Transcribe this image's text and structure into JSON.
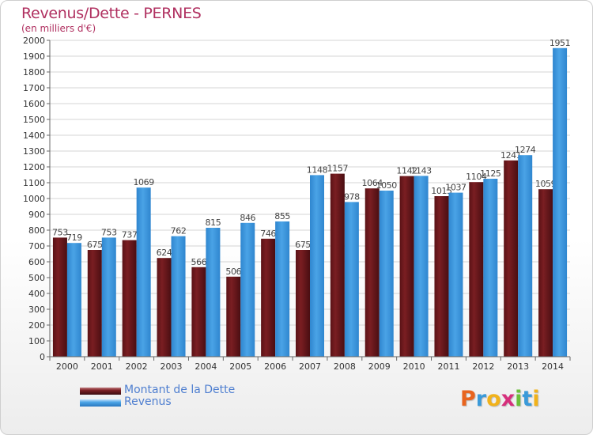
{
  "title": "Revenus/Dette - PERNES",
  "subtitle": "(en milliers d'€)",
  "logo": "Proxiti",
  "colors": {
    "debt": "#7a1e22",
    "revenue": "#4aa3e6",
    "title": "#b03060",
    "legend_text": "#4f7fd0"
  },
  "chart_data": {
    "type": "bar",
    "title": "Revenus/Dette - PERNES",
    "subtitle": "(en milliers d'€)",
    "xlabel": "",
    "ylabel": "",
    "ylim": [
      0,
      2000
    ],
    "yticks": [
      0,
      100,
      200,
      300,
      400,
      500,
      600,
      700,
      800,
      900,
      1000,
      1100,
      1200,
      1300,
      1400,
      1500,
      1600,
      1700,
      1800,
      1900,
      2000
    ],
    "grid": true,
    "legend_position": "bottom-left",
    "categories": [
      "2000",
      "2001",
      "2002",
      "2003",
      "2004",
      "2005",
      "2006",
      "2007",
      "2008",
      "2009",
      "2010",
      "2011",
      "2012",
      "2013",
      "2014"
    ],
    "series": [
      {
        "name": "Montant de la Dette",
        "color": "#7a1e22",
        "values": [
          753,
          675,
          737,
          624,
          566,
          506,
          746,
          675,
          1157,
          1064,
          1142,
          1015,
          1104,
          1241,
          1059
        ],
        "labels": [
          "753",
          "675",
          "737",
          "624",
          "566",
          "506",
          "746",
          "675",
          "1157",
          "1064",
          "1142",
          "1015",
          "1104",
          "1241",
          "1059"
        ]
      },
      {
        "name": "Revenus",
        "color": "#4aa3e6",
        "values": [
          719,
          753,
          1069,
          762,
          815,
          846,
          855,
          1148,
          978,
          1050,
          1143,
          1037,
          1125,
          1274,
          1951
        ],
        "labels": [
          "719",
          "753",
          "1069",
          "762",
          "815",
          "846",
          "855",
          "1148",
          "978",
          "1050",
          "1143",
          "1037",
          "1125",
          "1274",
          "1951"
        ]
      }
    ]
  }
}
